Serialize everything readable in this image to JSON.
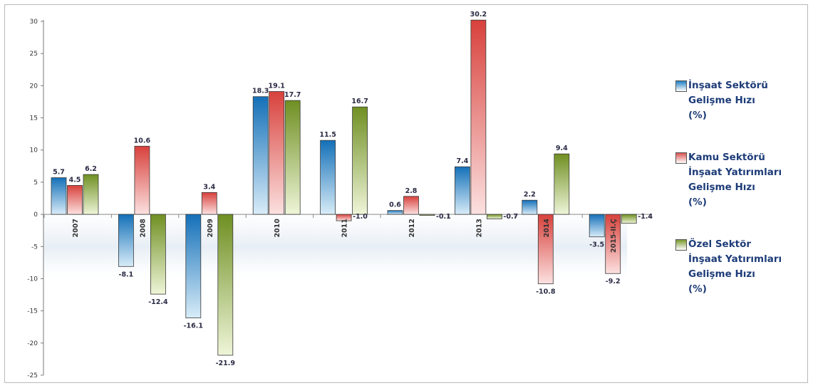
{
  "chart_data": {
    "type": "bar",
    "categories": [
      "2007",
      "2008",
      "2009",
      "2010",
      "2011",
      "2012",
      "2013",
      "2014",
      "2015-II.Ç"
    ],
    "series": [
      {
        "name": "İnşaat Sektörü Gelişme Hızı (%)",
        "legend_lines": [
          "İnşaat Sektörü",
          "Gelişme Hızı",
          "(%)"
        ],
        "color": "#1f7fc4",
        "values": [
          5.7,
          -8.1,
          -16.1,
          18.3,
          11.5,
          0.6,
          7.4,
          2.2,
          -3.5
        ],
        "labels": [
          "5.7",
          "-8.1",
          "-16.1",
          "18.3",
          "11.5",
          "0.6",
          "7.4",
          "2.2",
          "-3.5"
        ]
      },
      {
        "name": "Kamu Sektörü İnşaat Yatırımları Gelişme Hızı (%)",
        "legend_lines": [
          "Kamu Sektörü",
          "İnşaat Yatırımları",
          "Gelişme Hızı",
          "(%)"
        ],
        "color": "#d9534f",
        "values": [
          4.5,
          10.6,
          3.4,
          19.1,
          -1.0,
          2.8,
          30.2,
          -10.8,
          -9.2
        ],
        "labels": [
          "4.5",
          "10.6",
          "3.4",
          "19.1",
          "-1.0",
          "2.8",
          "30.2",
          "-10.8",
          "-9.2"
        ]
      },
      {
        "name": "Özel Sektör İnşaat Yatırımları Gelişme Hızı (%)",
        "legend_lines": [
          "Özel Sektör",
          "İnşaat Yatırımları",
          "Gelişme Hızı",
          "(%)"
        ],
        "color": "#7a9a2e",
        "values": [
          6.2,
          -12.4,
          -21.9,
          17.7,
          16.7,
          -0.1,
          -0.7,
          9.4,
          -1.4
        ],
        "labels": [
          "6.2",
          "-12.4",
          "-21.9",
          "17.7",
          "16.7",
          "-0.1",
          "-0.7",
          "9.4",
          "-1.4"
        ]
      }
    ],
    "yticks": [
      "30",
      "25",
      "20",
      "15",
      "10",
      "5",
      "0",
      "-5",
      "-10",
      "-15",
      "-20",
      "-25"
    ],
    "ylim": [
      -25,
      30
    ],
    "grid": false,
    "legend_position": "right"
  }
}
